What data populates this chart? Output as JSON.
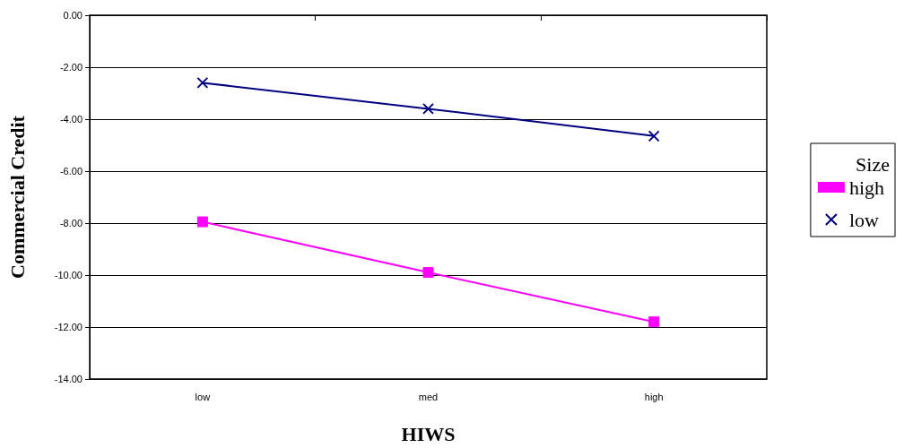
{
  "chart_data": {
    "type": "line",
    "xlabel": "HIWS",
    "ylabel": "Commercial Credit",
    "legend_title": "Size",
    "categories": [
      "low",
      "med",
      "high"
    ],
    "series": [
      {
        "name": "high",
        "color": "#ff00ff",
        "marker": "square",
        "values": [
          -7.95,
          -9.9,
          -11.8
        ]
      },
      {
        "name": "low",
        "color": "#000080",
        "marker": "cross",
        "values": [
          -2.6,
          -3.6,
          -4.65
        ]
      }
    ],
    "ylim": [
      -14,
      0
    ],
    "yticks": [
      {
        "value": -14,
        "label": "-14.00"
      },
      {
        "value": -12,
        "label": "-12.00"
      },
      {
        "value": -10,
        "label": "-10.00"
      },
      {
        "value": -8,
        "label": "-8.00"
      },
      {
        "value": -6,
        "label": "-6.00"
      },
      {
        "value": -4,
        "label": "-4.00"
      },
      {
        "value": -2,
        "label": "-2.00"
      },
      {
        "value": 0,
        "label": "0.00"
      }
    ],
    "grid": "y",
    "legend": "right",
    "line_style": "solid"
  }
}
